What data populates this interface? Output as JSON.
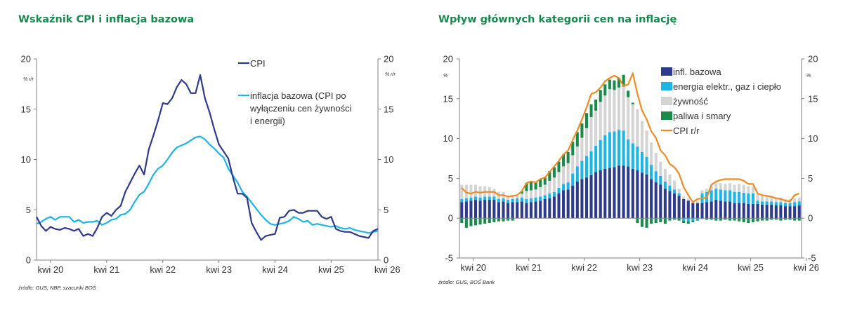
{
  "chart_data": [
    {
      "type": "line",
      "title": "Wskaźnik CPI i inflacja bazowa",
      "y_unit_left": "% r/r",
      "y_unit_right": "% r/r",
      "ylim": [
        0,
        20
      ],
      "yticks": [
        0,
        5,
        10,
        15,
        20
      ],
      "xtick_labels": [
        "kwi 20",
        "kwi 21",
        "kwi 22",
        "kwi 23",
        "kwi 24",
        "kwi 25",
        "kwi 26"
      ],
      "x_start": "2020-01",
      "legend_placement": "top-right",
      "source": "źródło: GUS, NBP, szacunki BOŚ",
      "colors": {
        "CPI": "#2e3a8c",
        "core": "#1fb4e6",
        "axis": "#808080"
      },
      "series": [
        {
          "name": "CPI",
          "legend_lines": [
            "CPI"
          ],
          "values": [
            4.3,
            3.4,
            2.9,
            3.3,
            3.1,
            3.0,
            3.2,
            3.1,
            2.9,
            3.1,
            2.4,
            2.6,
            2.4,
            3.2,
            4.3,
            4.7,
            4.4,
            5.0,
            5.4,
            6.8,
            7.7,
            8.6,
            9.4,
            8.5,
            11.0,
            12.4,
            13.9,
            15.6,
            15.5,
            16.1,
            17.2,
            17.9,
            17.5,
            16.6,
            16.6,
            18.4,
            16.1,
            14.7,
            13.0,
            11.5,
            10.8,
            10.1,
            8.2,
            6.6,
            6.6,
            6.2,
            3.7,
            2.8,
            2.0,
            2.4,
            2.5,
            2.6,
            4.2,
            4.3,
            4.9,
            5.0,
            4.7,
            4.7,
            4.9,
            4.9,
            4.9,
            4.3,
            4.1,
            4.3,
            3.1,
            2.9,
            2.8,
            2.8,
            2.6,
            2.4,
            2.3,
            2.2,
            2.9,
            3.1
          ],
          "end_value": 3.1
        },
        {
          "name": "inflacja bazowa (CPI po wyłączeniu cen żywności i energii)",
          "legend_lines": [
            "inflacja bazowa (CPI po",
            "wyłączeniu cen żywności",
            "i energii)"
          ],
          "values": [
            3.6,
            3.8,
            4.1,
            4.3,
            4.0,
            4.3,
            4.3,
            4.3,
            3.8,
            4.0,
            3.7,
            3.8,
            3.8,
            3.9,
            3.5,
            3.7,
            4.0,
            4.1,
            4.5,
            4.6,
            5.0,
            5.8,
            6.5,
            6.8,
            7.6,
            8.5,
            9.1,
            9.4,
            10.0,
            10.7,
            11.2,
            11.4,
            11.6,
            11.9,
            12.2,
            12.3,
            12.0,
            11.5,
            11.1,
            10.6,
            10.2,
            9.1,
            8.4,
            7.7,
            6.8,
            6.3,
            5.7,
            5.1,
            4.5,
            4.0,
            3.6,
            3.5,
            3.6,
            3.7,
            3.9,
            4.3,
            4.1,
            3.8,
            3.9,
            3.5,
            3.6,
            3.5,
            3.4,
            3.3,
            3.4,
            3.2,
            3.1,
            3.2,
            3.0,
            2.9,
            2.8,
            2.7,
            2.8,
            2.9
          ]
        }
      ]
    },
    {
      "type": "bar",
      "stacked": true,
      "title": "Wpływ głównych kategorii cen na inflację",
      "y_unit_left": "%",
      "y_unit_right": "%",
      "ylim": [
        -5,
        20
      ],
      "yticks": [
        -5,
        0,
        5,
        10,
        15,
        20
      ],
      "xtick_labels": [
        "kwi 20",
        "kwi 21",
        "kwi 22",
        "kwi 23",
        "kwi 24",
        "kwi 25",
        "kwi 26"
      ],
      "x_start": "2020-01",
      "legend_placement": "top-right",
      "source": "źródło: GUS, BOŚ Bank",
      "colors": {
        "infl. bazowa": "#2e3a8c",
        "energia elektr., gaz i ciepło": "#1fb4e6",
        "żywność": "#d4d4d4",
        "paliwa i smary": "#1a8a4a",
        "CPI r/r": "#f08a24",
        "axis": "#808080"
      },
      "series": [
        {
          "name": "infl. bazowa",
          "values": [
            2.0,
            2.1,
            2.2,
            2.3,
            2.2,
            2.3,
            2.3,
            2.3,
            2.0,
            2.1,
            1.9,
            2.0,
            2.0,
            2.1,
            1.9,
            2.0,
            2.1,
            2.2,
            2.4,
            2.5,
            2.7,
            3.1,
            3.5,
            3.6,
            4.1,
            4.6,
            4.9,
            5.1,
            5.4,
            5.8,
            6.0,
            6.2,
            6.3,
            6.4,
            6.6,
            6.6,
            6.5,
            6.2,
            6.0,
            5.7,
            5.5,
            4.9,
            4.5,
            4.2,
            3.7,
            3.4,
            3.1,
            2.8,
            2.4,
            2.2,
            1.9,
            1.9,
            1.9,
            2.0,
            2.1,
            2.3,
            2.2,
            2.1,
            2.1,
            1.9,
            1.9,
            1.9,
            1.8,
            1.8,
            1.8,
            1.7,
            1.7,
            1.7,
            1.6,
            1.6,
            1.5,
            1.5,
            1.5,
            1.6
          ]
        },
        {
          "name": "energia elektr., gaz i ciepło",
          "values": [
            0.4,
            0.4,
            0.4,
            0.4,
            0.4,
            0.4,
            0.4,
            0.4,
            0.4,
            0.4,
            0.4,
            0.4,
            0.5,
            0.5,
            0.5,
            0.5,
            0.5,
            0.5,
            0.5,
            0.6,
            0.6,
            0.7,
            0.8,
            0.9,
            1.5,
            1.9,
            2.3,
            2.7,
            3.0,
            3.3,
            3.8,
            4.2,
            4.5,
            4.5,
            4.5,
            4.4,
            3.4,
            3.2,
            3.0,
            2.6,
            2.2,
            1.8,
            1.4,
            1.1,
            0.9,
            0.7,
            0.5,
            0.3,
            -0.3,
            -0.4,
            -0.3,
            -0.2,
            1.2,
            1.3,
            1.4,
            1.4,
            1.4,
            1.4,
            1.4,
            1.4,
            1.4,
            1.3,
            1.3,
            1.3,
            0.4,
            0.4,
            0.4,
            0.4,
            0.4,
            0.4,
            0.4,
            0.4,
            0.5,
            0.5
          ]
        },
        {
          "name": "żywność",
          "values": [
            1.8,
            1.7,
            1.6,
            1.5,
            1.4,
            1.3,
            1.2,
            1.0,
            0.9,
            0.8,
            0.5,
            0.5,
            0.3,
            0.5,
            1.0,
            1.0,
            1.0,
            1.2,
            1.3,
            1.6,
            1.8,
            2.0,
            2.2,
            2.4,
            2.3,
            2.5,
            2.9,
            3.5,
            4.3,
            4.4,
            4.8,
            5.0,
            5.4,
            5.2,
            5.3,
            5.5,
            5.3,
            4.9,
            4.7,
            3.9,
            3.3,
            2.8,
            2.3,
            1.8,
            1.6,
            1.4,
            1.1,
            0.6,
            0.3,
            0.3,
            0.3,
            0.3,
            0.4,
            0.4,
            0.6,
            0.7,
            0.8,
            0.8,
            0.9,
            0.9,
            1.0,
            1.0,
            0.9,
            0.9,
            0.8,
            0.8,
            0.7,
            0.6,
            0.6,
            0.6,
            0.5,
            0.5,
            0.5,
            0.5
          ]
        },
        {
          "name": "paliwa i smary",
          "values": [
            -0.6,
            -1.2,
            -1.0,
            -0.9,
            -0.8,
            -0.7,
            -0.6,
            -0.5,
            -0.4,
            -0.4,
            -0.3,
            -0.3,
            0.0,
            0.3,
            1.0,
            1.1,
            0.9,
            1.0,
            1.0,
            1.2,
            1.3,
            1.3,
            1.5,
            1.4,
            1.7,
            1.8,
            1.8,
            1.9,
            1.6,
            1.4,
            1.5,
            1.4,
            1.2,
            1.2,
            1.2,
            1.5,
            0.8,
            0.2,
            -0.6,
            -1.1,
            -1.2,
            -0.7,
            -0.6,
            -0.5,
            -0.7,
            -0.3,
            -0.2,
            -0.3,
            -0.3,
            -0.3,
            -0.2,
            -0.1,
            -0.1,
            -0.2,
            -0.2,
            -0.3,
            -0.3,
            -0.2,
            -0.3,
            -0.3,
            -0.4,
            -0.5,
            -0.6,
            -0.5,
            -0.4,
            -0.3,
            -0.3,
            -0.2,
            -0.2,
            -0.3,
            -0.2,
            -0.2,
            -0.3,
            -0.3
          ]
        },
        {
          "name": "CPI r/r",
          "type": "line",
          "values": [
            3.8,
            3.2,
            3.1,
            3.3,
            3.2,
            3.3,
            3.3,
            3.3,
            2.9,
            2.9,
            2.7,
            2.8,
            2.9,
            3.4,
            4.4,
            4.6,
            4.5,
            4.9,
            5.1,
            5.8,
            6.5,
            7.2,
            8.0,
            8.5,
            9.8,
            11.0,
            12.4,
            13.9,
            15.6,
            15.8,
            16.4,
            17.2,
            17.6,
            17.9,
            17.6,
            16.6,
            16.8,
            18.2,
            15.6,
            13.5,
            12.4,
            10.9,
            10.1,
            8.5,
            7.9,
            6.8,
            6.4,
            5.6,
            3.9,
            2.9,
            2.0,
            2.4,
            2.5,
            2.6,
            4.2,
            4.6,
            4.8,
            4.9,
            4.9,
            4.9,
            4.9,
            4.7,
            4.3,
            4.3,
            3.1,
            2.9,
            2.8,
            2.7,
            2.5,
            2.4,
            2.2,
            2.1,
            2.9,
            3.1
          ]
        }
      ]
    }
  ]
}
